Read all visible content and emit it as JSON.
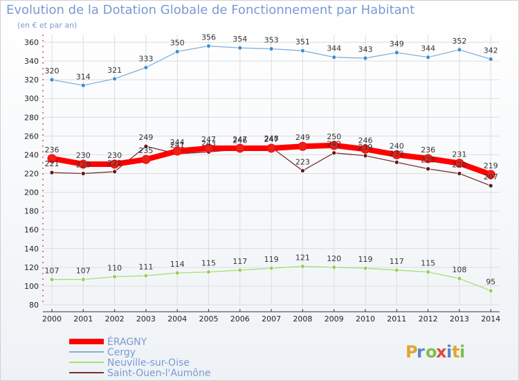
{
  "header": {
    "title": "Evolution de la Dotation Globale de Fonctionnement par Habitant",
    "subtitle": "(en € et par an)"
  },
  "logo": {
    "text": "Proxiti"
  },
  "chart_data": {
    "type": "line",
    "title": "Evolution de la Dotation Globale de Fonctionnement par Habitant",
    "subtitle": "(en € et par an)",
    "xlabel": "",
    "ylabel": "",
    "ylim": [
      80,
      360
    ],
    "yticks": [
      80,
      100,
      120,
      140,
      160,
      180,
      200,
      220,
      240,
      260,
      280,
      300,
      320,
      340,
      360
    ],
    "grid": true,
    "legend_position": "bottom-left",
    "x": [
      "2000",
      "2001",
      "2002",
      "2003",
      "2004",
      "2005",
      "2006",
      "2007",
      "2008",
      "2009",
      "2010",
      "2011",
      "2012",
      "2013",
      "2014"
    ],
    "series": [
      {
        "name": "ÉRAGNY",
        "color": "#ff0000",
        "marker": "#e8221a",
        "values": [
          236,
          230,
          230,
          235,
          244,
          247,
          247,
          247,
          249,
          250,
          246,
          240,
          236,
          231,
          219
        ],
        "labels": [
          "236",
          "230",
          "230",
          "235",
          "244",
          "247",
          "247",
          "247",
          "249",
          "250",
          "246",
          "240",
          "236",
          "231",
          "219"
        ]
      },
      {
        "name": "Cergy",
        "color": "#7fb0dd",
        "marker": "#3d8ed1",
        "values": [
          320,
          314,
          321,
          333,
          350,
          356,
          354,
          353,
          351,
          344,
          343,
          349,
          344,
          352,
          342
        ],
        "labels": [
          "320",
          "314",
          "321",
          "333",
          "350",
          "356",
          "354",
          "353",
          "351",
          "344",
          "343",
          "349",
          "344",
          "352",
          "342"
        ]
      },
      {
        "name": "Neuville-sur-Oise",
        "color": "#a6de74",
        "marker": "#8fd45a",
        "values": [
          107,
          107,
          110,
          111,
          114,
          115,
          117,
          119,
          121,
          120,
          119,
          117,
          115,
          108,
          95
        ],
        "labels": [
          "107",
          "107",
          "110",
          "111",
          "114",
          "115",
          "117",
          "119",
          "121",
          "120",
          "119",
          "117",
          "115",
          "108",
          "95"
        ]
      },
      {
        "name": "Saint-Ouen-l'Aumône",
        "color": "#7a2f2f",
        "marker": "#5a1a1a",
        "values": [
          221,
          220,
          222,
          249,
          241,
          243,
          246,
          248,
          223,
          242,
          239,
          232,
          225,
          220,
          207
        ],
        "labels": [
          "221",
          "220",
          "222",
          "249",
          "241",
          "243",
          "246",
          "248",
          "223",
          "242",
          "239",
          "232",
          "225",
          "220",
          "207"
        ]
      }
    ]
  }
}
